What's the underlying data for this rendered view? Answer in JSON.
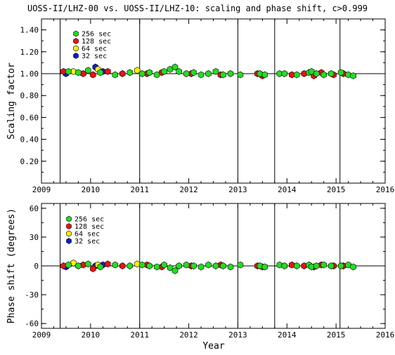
{
  "chart_data": [
    {
      "type": "scatter",
      "title": "UOSS-II/LHZ-00 vs. UOSS-II/LHZ-10: scaling and phase shift, c>0.999",
      "xlabel": "",
      "ylabel": "Scaling factor",
      "xlim": [
        2009.0,
        2016.0
      ],
      "ylim": [
        0.0,
        1.5
      ],
      "x_ticks": [
        "2009",
        "2010",
        "2011",
        "2012",
        "2013",
        "2014",
        "2015",
        "2016"
      ],
      "y_ticks": [
        "0.20",
        "0.40",
        "0.60",
        "0.80",
        "1.00",
        "1.20",
        "1.40"
      ],
      "reference_line": 1.0,
      "vertical_markers": [
        2009.38,
        2011.0,
        2013.0,
        2013.75,
        2015.08
      ],
      "legend_position": "top-left",
      "series": [
        {
          "name": "256 sec",
          "color": "#22dd22",
          "x": [
            2009.55,
            2009.75,
            2009.95,
            2010.2,
            2010.5,
            2010.8,
            2011.05,
            2011.2,
            2011.35,
            2011.5,
            2011.62,
            2011.72,
            2011.8,
            2011.95,
            2012.1,
            2012.25,
            2012.4,
            2012.55,
            2012.7,
            2012.85,
            2013.05,
            2013.45,
            2013.55,
            2013.85,
            2013.95,
            2014.2,
            2014.45,
            2014.5,
            2014.6,
            2014.75,
            2014.9,
            2015.1,
            2015.25,
            2015.35
          ],
          "y": [
            1.02,
            1.01,
            1.03,
            1.01,
            0.99,
            1.01,
            1.0,
            1.01,
            0.99,
            1.02,
            1.04,
            1.06,
            1.02,
            1.0,
            1.01,
            0.99,
            1.0,
            1.02,
            0.99,
            1.0,
            0.99,
            1.0,
            0.99,
            1.0,
            1.0,
            0.99,
            1.01,
            1.02,
            1.0,
            0.99,
            1.0,
            1.01,
            0.99,
            0.98
          ]
        },
        {
          "name": "128 sec",
          "color": "#ee1111",
          "x": [
            2009.45,
            2009.85,
            2010.05,
            2010.35,
            2010.65,
            2011.15,
            2011.45,
            2012.05,
            2012.65,
            2013.4,
            2013.5,
            2014.1,
            2014.35,
            2014.55,
            2014.7,
            2014.95,
            2015.15
          ],
          "y": [
            1.02,
            1.0,
            0.99,
            1.02,
            1.0,
            1.0,
            1.01,
            1.0,
            0.99,
            1.0,
            0.98,
            0.99,
            1.0,
            0.98,
            1.01,
            0.99,
            1.0
          ]
        },
        {
          "name": "64 sec",
          "color": "#ffee00",
          "x": [
            2009.65,
            2010.15,
            2010.95
          ],
          "y": [
            1.02,
            1.04,
            1.03
          ]
        },
        {
          "name": "32 sec",
          "color": "#0b1fcc",
          "x": [
            2009.5,
            2010.1,
            2010.25
          ],
          "y": [
            1.0,
            1.06,
            1.02
          ]
        }
      ]
    },
    {
      "type": "scatter",
      "xlabel": "Year",
      "ylabel": "Phase shift (degrees)",
      "xlim": [
        2009.0,
        2016.0
      ],
      "ylim": [
        -65,
        65
      ],
      "x_ticks": [
        "2009",
        "2010",
        "2011",
        "2012",
        "2013",
        "2014",
        "2015",
        "2016"
      ],
      "y_ticks": [
        "-60",
        "-30",
        "0",
        "30",
        "60"
      ],
      "reference_line": 0,
      "vertical_markers": [
        2009.38,
        2011.0,
        2013.0,
        2013.75,
        2015.08
      ],
      "legend_position": "top-left",
      "series": [
        {
          "name": "256 sec",
          "color": "#22dd22",
          "x": [
            2009.55,
            2009.75,
            2009.95,
            2010.2,
            2010.5,
            2010.8,
            2011.05,
            2011.2,
            2011.35,
            2011.5,
            2011.62,
            2011.72,
            2011.8,
            2011.95,
            2012.1,
            2012.25,
            2012.4,
            2012.55,
            2012.7,
            2012.85,
            2013.05,
            2013.45,
            2013.55,
            2013.85,
            2013.95,
            2014.2,
            2014.45,
            2014.5,
            2014.6,
            2014.75,
            2014.9,
            2015.1,
            2015.25,
            2015.35
          ],
          "y": [
            1,
            0,
            2,
            -1,
            1,
            0,
            1,
            0,
            -1,
            1,
            -2,
            -5,
            0,
            1,
            0,
            -1,
            1,
            0,
            0,
            -1,
            1,
            0,
            -1,
            1,
            0,
            0,
            1,
            -1,
            0,
            1,
            0,
            0,
            1,
            -1
          ]
        },
        {
          "name": "128 sec",
          "color": "#ee1111",
          "x": [
            2009.45,
            2009.85,
            2010.05,
            2010.35,
            2010.65,
            2011.15,
            2011.45,
            2012.05,
            2012.65,
            2013.4,
            2013.5,
            2014.1,
            2014.35,
            2014.55,
            2014.7,
            2014.95,
            2015.15
          ],
          "y": [
            0,
            1,
            -3,
            2,
            0,
            1,
            -1,
            0,
            1,
            0,
            -1,
            1,
            0,
            -1,
            1,
            0,
            0
          ]
        },
        {
          "name": "64 sec",
          "color": "#ffee00",
          "x": [
            2009.65,
            2010.15,
            2010.95
          ],
          "y": [
            3,
            1,
            2
          ]
        },
        {
          "name": "32 sec",
          "color": "#0b1fcc",
          "x": [
            2009.5,
            2010.1,
            2010.25
          ],
          "y": [
            -1,
            0,
            1
          ]
        }
      ]
    }
  ]
}
